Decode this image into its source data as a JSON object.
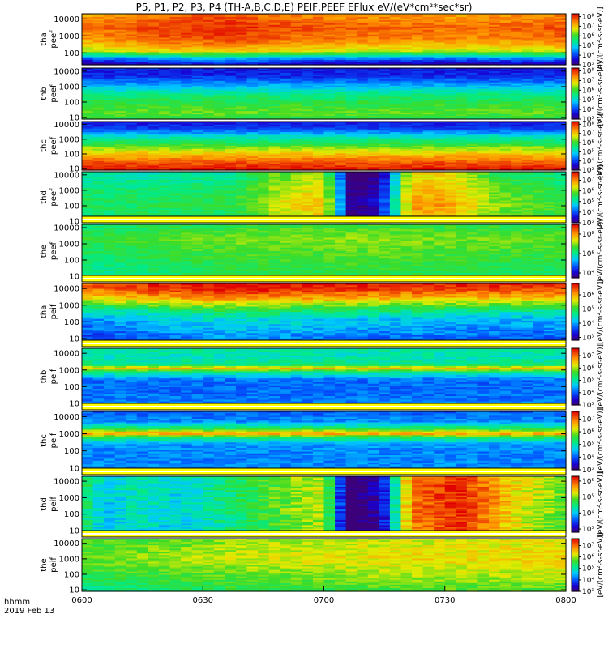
{
  "title": "P5, P1, P2, P3, P4 (TH-A,B,C,D,E) PEIF,PEEF EFlux eV/(eV*cm²*sec*sr)",
  "footer": {
    "time_label": "hhmm",
    "date_label": "2019 Feb 13"
  },
  "chart_data": {
    "type": "heatmap",
    "x_ticks": [
      "0600",
      "0630",
      "0700",
      "0730",
      "0800"
    ],
    "x_range_hhmm": [
      "0600",
      "0800"
    ],
    "y_scale": "log",
    "colorbar_label": "[eV/(cm²-s-sr-eV)]",
    "panels": [
      {
        "id": "tha-peef",
        "label1": "tha",
        "label2": "peef",
        "yticks": [
          "10000",
          "1000",
          "100"
        ],
        "ylog": [
          1.3,
          4.3
        ],
        "cbar": [
          "10⁸",
          "10⁷",
          "10⁶",
          "10⁵",
          "10⁴",
          "10³"
        ],
        "cmin": 3,
        "cmax": 8.3,
        "profile": [
          [
            1.4,
            3.4
          ],
          [
            1.7,
            4.6
          ],
          [
            2.1,
            6.6
          ],
          [
            2.8,
            7.5
          ],
          [
            3.5,
            7.7
          ],
          [
            4.3,
            7.3
          ]
        ],
        "mod": {
          "t": [
            0,
            0.15,
            0.3,
            0.45,
            0.6,
            0.8,
            1
          ],
          "v": [
            -0.2,
            0.2,
            0.4,
            0.1,
            0,
            -0.1,
            0.1
          ]
        },
        "strip": false
      },
      {
        "id": "thb-peef",
        "label1": "thb",
        "label2": "peef",
        "yticks": [
          "10000",
          "1000",
          "100",
          "10"
        ],
        "ylog": [
          0.9,
          4.2
        ],
        "cbar": [
          "10⁸",
          "10⁷",
          "10⁶",
          "10⁵",
          "10⁴",
          "10³"
        ],
        "cmin": 3,
        "cmax": 8.3,
        "profile": [
          [
            0.9,
            5.8
          ],
          [
            1.3,
            6.2
          ],
          [
            1.9,
            5.9
          ],
          [
            2.5,
            5.5
          ],
          [
            3.1,
            4.6
          ],
          [
            3.7,
            3.8
          ],
          [
            4.2,
            3.7
          ]
        ],
        "mod": {
          "t": [
            0,
            0.5,
            1
          ],
          "v": [
            0,
            0,
            0
          ]
        },
        "strip": false
      },
      {
        "id": "thc-peef",
        "label1": "thc",
        "label2": "peef",
        "yticks": [
          "10000",
          "1000",
          "100",
          "10"
        ],
        "ylog": [
          0.9,
          4.2
        ],
        "cbar": [
          "10⁸",
          "10⁷",
          "10⁶",
          "10⁵",
          "10⁴",
          "10³"
        ],
        "cmin": 3,
        "cmax": 8.3,
        "profile": [
          [
            0.9,
            8.2
          ],
          [
            1.4,
            7.8
          ],
          [
            2,
            7.0
          ],
          [
            2.6,
            6.0
          ],
          [
            3.2,
            5.1
          ],
          [
            3.7,
            4.0
          ],
          [
            4.2,
            3.6
          ]
        ],
        "mod": {
          "t": [
            0,
            0.5,
            1
          ],
          "v": [
            0,
            0,
            0
          ]
        },
        "strip": false
      },
      {
        "id": "thd-peef",
        "label1": "thd",
        "label2": "peef",
        "yticks": [
          "10000",
          "1000",
          "100",
          "10"
        ],
        "ylog": [
          0.9,
          4.2
        ],
        "cbar": [
          "10⁷",
          "10⁶",
          "10⁵",
          "10⁴",
          "10³"
        ],
        "cmin": 3,
        "cmax": 7.8,
        "profile": [
          [
            0.9,
            5.2
          ],
          [
            1.5,
            5.4
          ],
          [
            2.2,
            5.5
          ],
          [
            3,
            5.3
          ],
          [
            3.8,
            5.1
          ],
          [
            4.2,
            5.0
          ]
        ],
        "mod": {
          "t": [
            0,
            0.3,
            0.4,
            0.5,
            0.56,
            0.62,
            0.68,
            0.75,
            0.85,
            1
          ],
          "v": [
            0,
            0.1,
            0.8,
            1.2,
            -2.5,
            -1.8,
            1.4,
            1.4,
            0.6,
            0.2
          ]
        },
        "strip": false
      },
      {
        "id": "the-peef",
        "label1": "the",
        "label2": "peef",
        "yticks": [
          "10000",
          "1000",
          "100",
          "10"
        ],
        "ylog": [
          0.9,
          4.2
        ],
        "cbar": [
          "10⁸",
          "10⁶",
          "10⁴"
        ],
        "cmin": 3.5,
        "cmax": 9,
        "profile": [
          [
            0.9,
            6.1
          ],
          [
            1.7,
            6.3
          ],
          [
            2.5,
            6.5
          ],
          [
            3.3,
            6.7
          ],
          [
            4.2,
            6.3
          ]
        ],
        "mod": {
          "t": [
            0,
            0.3,
            0.6,
            1
          ],
          "v": [
            -0.2,
            0.2,
            0.3,
            0.1
          ]
        },
        "strip": true
      },
      {
        "id": "tha-peif",
        "label1": "tha",
        "label2": "peif",
        "yticks": [
          "10000",
          "1000",
          "100",
          "10"
        ],
        "ylog": [
          0.9,
          4.3
        ],
        "cbar": [
          "10⁶",
          "10⁵",
          "10⁴",
          "10³"
        ],
        "cmin": 2.8,
        "cmax": 6.8,
        "profile": [
          [
            0.9,
            3.6
          ],
          [
            1.6,
            3.9
          ],
          [
            2.2,
            4.1
          ],
          [
            2.8,
            4.8
          ],
          [
            3.4,
            5.8
          ],
          [
            3.9,
            6.4
          ],
          [
            4.3,
            6.6
          ]
        ],
        "mod": {
          "t": [
            0,
            0.15,
            0.3,
            0.6,
            1
          ],
          "v": [
            -0.2,
            0.1,
            0.3,
            0.1,
            0
          ]
        },
        "strip": true
      },
      {
        "id": "thb-peif",
        "label1": "thb",
        "label2": "peif",
        "yticks": [
          "10000",
          "1000",
          "100",
          "10"
        ],
        "ylog": [
          0.9,
          4.3
        ],
        "cbar": [
          "10⁷",
          "10⁶",
          "10⁵",
          "10⁴",
          "10³"
        ],
        "cmin": 3,
        "cmax": 7.6,
        "profile": [
          [
            0.9,
            4.2
          ],
          [
            1.6,
            4.1
          ],
          [
            2.4,
            4.1
          ],
          [
            2.9,
            5.2
          ],
          [
            3.1,
            6.7
          ],
          [
            3.3,
            5.2
          ],
          [
            3.8,
            4.9
          ],
          [
            4.3,
            5.1
          ]
        ],
        "mod": {
          "t": [
            0,
            0.5,
            1
          ],
          "v": [
            0,
            0,
            0
          ]
        },
        "strip": true
      },
      {
        "id": "thc-peif",
        "label1": "thc",
        "label2": "peif",
        "yticks": [
          "10000",
          "1000",
          "100",
          "10"
        ],
        "ylog": [
          0.9,
          4.3
        ],
        "cbar": [
          "10⁷",
          "10⁶",
          "10⁵",
          "10⁴",
          "10³"
        ],
        "cmin": 3,
        "cmax": 7.6,
        "profile": [
          [
            0.9,
            4.3
          ],
          [
            1.6,
            4.2
          ],
          [
            2.4,
            4.3
          ],
          [
            2.8,
            5.4
          ],
          [
            3,
            6.8
          ],
          [
            3.3,
            5.4
          ],
          [
            3.7,
            4.3
          ],
          [
            4.3,
            4.0
          ]
        ],
        "mod": {
          "t": [
            0,
            0.5,
            1
          ],
          "v": [
            0,
            0,
            0
          ]
        },
        "strip": true
      },
      {
        "id": "thd-peif",
        "label1": "thd",
        "label2": "peif",
        "yticks": [
          "10000",
          "1000",
          "100",
          "10"
        ],
        "ylog": [
          0.9,
          4.3
        ],
        "cbar": [
          "10⁶",
          "10⁵",
          "10⁴",
          "10³"
        ],
        "cmin": 2.8,
        "cmax": 6.3,
        "profile": [
          [
            0.9,
            4.5
          ],
          [
            2.5,
            4.6
          ],
          [
            4.3,
            4.6
          ]
        ],
        "mod": {
          "t": [
            0,
            0.05,
            0.1,
            0.2,
            0.35,
            0.5,
            0.55,
            0.62,
            0.68,
            0.78,
            0.9,
            1
          ],
          "v": [
            0.1,
            -0.6,
            -0.3,
            -0.5,
            0.1,
            0.6,
            -2.0,
            -1.5,
            1.2,
            1.6,
            0.7,
            0.3
          ]
        },
        "strip": true
      },
      {
        "id": "the-peif",
        "label1": "the",
        "label2": "peif",
        "yticks": [
          "10000",
          "1000",
          "100",
          "10"
        ],
        "ylog": [
          0.9,
          4.3
        ],
        "cbar": [
          "10⁷",
          "10⁶",
          "10⁵",
          "10⁴",
          "10³"
        ],
        "cmin": 3,
        "cmax": 7.6,
        "profile": [
          [
            0.9,
            5.4
          ],
          [
            2,
            5.8
          ],
          [
            3,
            6.1
          ],
          [
            4.3,
            5.9
          ]
        ],
        "mod": {
          "t": [
            0,
            0.3,
            0.6,
            1
          ],
          "v": [
            -0.3,
            0,
            0.2,
            0.3
          ]
        },
        "strip": true
      }
    ]
  }
}
